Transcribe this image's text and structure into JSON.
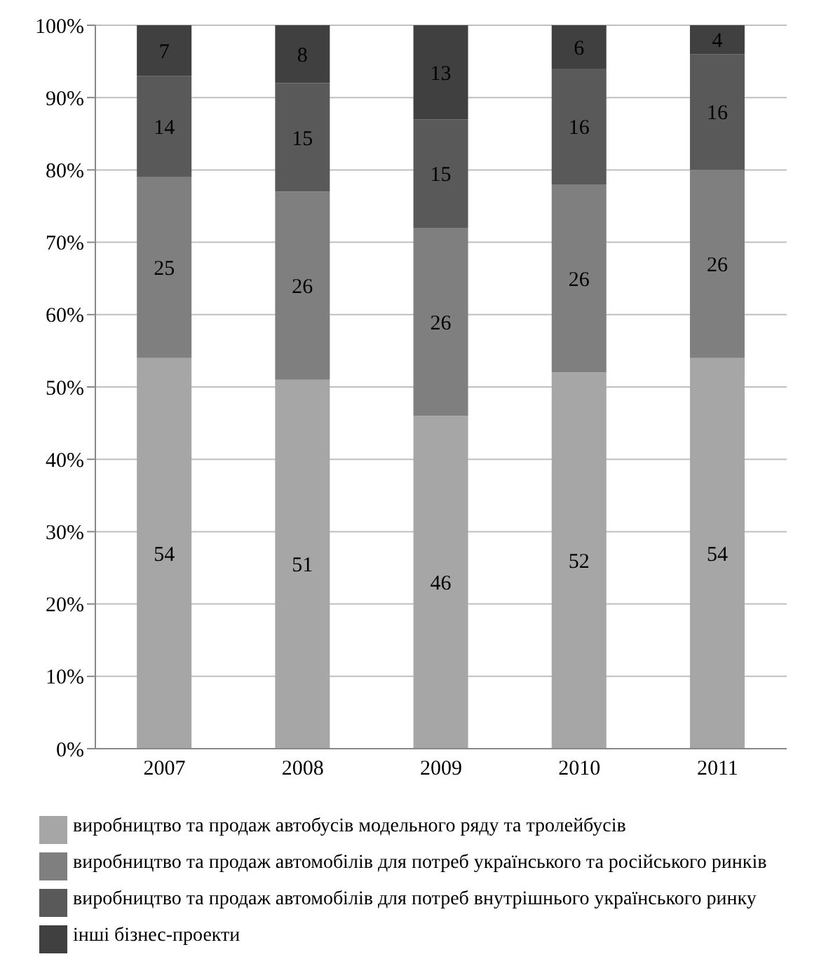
{
  "chart_data": {
    "type": "bar",
    "stacked": true,
    "categories": [
      "2007",
      "2008",
      "2009",
      "2010",
      "2011"
    ],
    "series": [
      {
        "name": "виробництво та продаж автобусів модельного ряду та тролейбусів",
        "color": "#a6a6a6",
        "values": [
          54,
          51,
          46,
          52,
          54
        ]
      },
      {
        "name": "виробництво та продаж автомобілів для потреб українського та російського ринків",
        "color": "#7f7f7f",
        "values": [
          25,
          26,
          26,
          26,
          26
        ]
      },
      {
        "name": "виробництво та продаж автомобілів для потреб внутрішнього українського ринку",
        "color": "#595959",
        "values": [
          14,
          15,
          15,
          16,
          16
        ]
      },
      {
        "name": "інші бізнес-проекти",
        "color": "#404040",
        "values": [
          7,
          8,
          13,
          6,
          4
        ]
      }
    ],
    "ylim": [
      0,
      100
    ],
    "yticks": [
      {
        "value": 0,
        "label": "0%"
      },
      {
        "value": 10,
        "label": "10%"
      },
      {
        "value": 20,
        "label": "20%"
      },
      {
        "value": 30,
        "label": "30%"
      },
      {
        "value": 40,
        "label": "40%"
      },
      {
        "value": 50,
        "label": "50%"
      },
      {
        "value": 60,
        "label": "60%"
      },
      {
        "value": 70,
        "label": "70%"
      },
      {
        "value": 80,
        "label": "80%"
      },
      {
        "value": 90,
        "label": "90%"
      },
      {
        "value": 100,
        "label": "100%"
      }
    ],
    "grid": "y",
    "data_labels": true,
    "legend": "bottom"
  }
}
